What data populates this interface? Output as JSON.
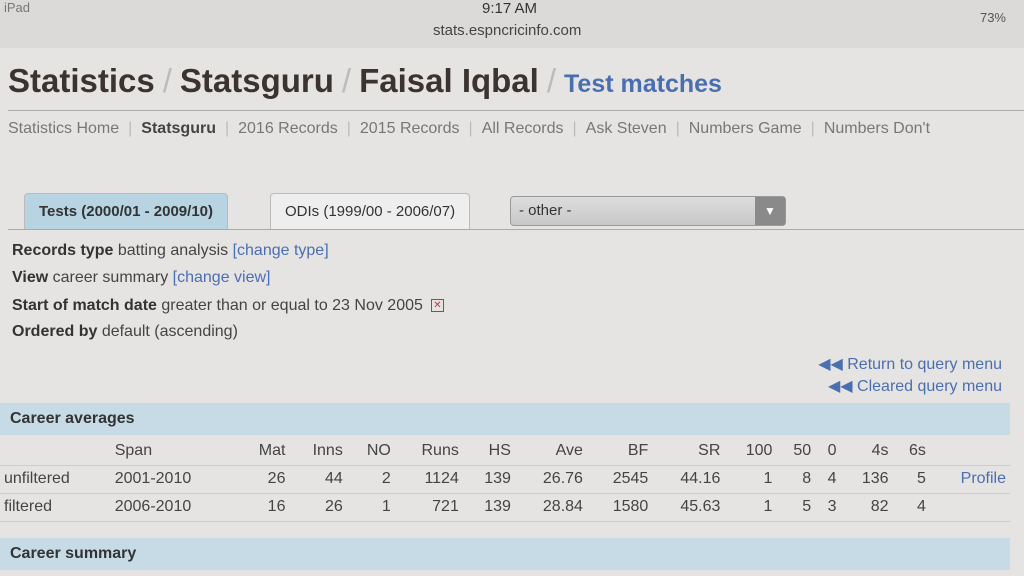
{
  "status": {
    "carrier": "iPad",
    "time": "9:17 AM",
    "battery": "73%",
    "url": "stats.espncricinfo.com"
  },
  "breadcrumb": [
    "Statistics",
    "Statsguru",
    "Faisal Iqbal",
    "Test matches"
  ],
  "nav": [
    "Statistics Home",
    "Statsguru",
    "2016 Records",
    "2015 Records",
    "All Records",
    "Ask Steven",
    "Numbers Game",
    "Numbers Don't"
  ],
  "tabs": {
    "tests": "Tests (2000/01 - 2009/10)",
    "odis": "ODIs (1999/00 - 2006/07)",
    "other": "- other -"
  },
  "query": {
    "records_label": "Records type",
    "records_value": "batting analysis",
    "records_link": "[change type]",
    "view_label": "View",
    "view_value": "career summary",
    "view_link": "[change view]",
    "start_label": "Start of match date",
    "start_value": "greater than or equal to 23 Nov 2005",
    "order_label": "Ordered by",
    "order_value": "default (ascending)"
  },
  "links": {
    "return": "Return to query menu",
    "cleared": "Cleared query menu"
  },
  "career_averages": {
    "title": "Career averages",
    "headers": [
      "",
      "Span",
      "Mat",
      "Inns",
      "NO",
      "Runs",
      "HS",
      "Ave",
      "BF",
      "SR",
      "100",
      "50",
      "0",
      "4s",
      "6s",
      ""
    ],
    "rows": [
      [
        "unfiltered",
        "2001-2010",
        "26",
        "44",
        "2",
        "1124",
        "139",
        "26.76",
        "2545",
        "44.16",
        "1",
        "8",
        "4",
        "136",
        "5",
        "Profile"
      ],
      [
        "filtered",
        "2006-2010",
        "16",
        "26",
        "1",
        "721",
        "139",
        "28.84",
        "1580",
        "45.63",
        "1",
        "5",
        "3",
        "82",
        "4",
        ""
      ]
    ]
  },
  "career_summary": {
    "title": "Career summary"
  }
}
